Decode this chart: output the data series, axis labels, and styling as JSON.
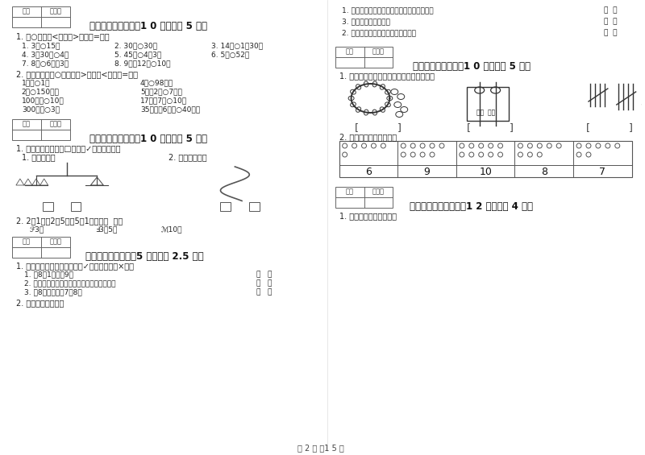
{
  "bg_color": "#ffffff",
  "text_color": "#333333",
  "page_width": 8.0,
  "page_height": 5.65,
  "dpi": 100,
  "footer_text": "第 2 页 关1 5 页",
  "section3_header": "三、我会比（本题共1 0 分，每题 5 分）",
  "section3_q1_title": "1. 在○里填「<」，「>」或「=」。",
  "section3_q1_items": [
    [
      "1. 3角○15分",
      "2. 30角○30分",
      "3. 14角○1兤30角"
    ],
    [
      "4. 3兤30角○4元",
      "5. 45角○4元3角",
      "6. 5角○52分"
    ],
    [
      "7. 8元○6元＋3元",
      "8. 9元＋12角○10元"
    ]
  ],
  "section3_q2_title": "2. 我会比较（在○里填上「>」，「<」或「=」）",
  "section3_q2_items": [
    [
      "1厘米○1米",
      "4米○98厘米"
    ],
    [
      "2米○150厘米",
      "5米＋2米○7厘米"
    ],
    [
      "100厘米○10米",
      "17米－7米○10米"
    ],
    [
      "300厘米○3米",
      "35厘米＋6厘米○40厘米"
    ]
  ],
  "section4_header": "四、选一选（本题共1 0 分，每题 5 分）",
  "section4_q1": "1. 在正确答案下面的□里画「✓」，选一选。",
  "section4_sub1": "1. 谁重一些？",
  "section4_sub2": "2. 哪排长一些？",
  "section4_q2": "2. 2彨1元，2彨5角，5彨1角组成（  ）。",
  "section4_options": [
    "ℱ3元",
    "Ⅎ3元5角",
    "ℳ10元"
  ],
  "section5_header": "五、对与错（本题共5 分，每题 2.5 分）",
  "section5_q1_title": "1. 下面的说法对吗？对的打「✓」，错的打「×」。",
  "section5_items": [
    "1. 比8大1的数是9。",
    "2. 从右边起，第一位是十位，第二位是个位。",
    "3. 与8相邻的数是7和8。"
  ],
  "section5_q2": "2. 我会判断对与错。",
  "right_top_items": [
    "1. 两个一样大的正方形可以拼成一个长方形。",
    "3. 长方形就是正方形。",
    "2. 两个三角形可以拼成一个四边形。"
  ],
  "right_top_parens": [
    "（  ）",
    "（  ）",
    "（  ）"
  ],
  "section6_header": "六、数一数（本题共1 0 分，每题 5 分）",
  "section6_q1": "1. 你能看图写数吗？越快越好，但别写错。",
  "section6_q2": "2. 数的认识，看数涂色。",
  "section6_numbers": [
    "6",
    "9",
    "10",
    "8",
    "7"
  ],
  "section7_header": "七、看图说话（本题共1 2 分，每题 4 分）",
  "section7_q1": "1. 我来选一选，填一填。"
}
